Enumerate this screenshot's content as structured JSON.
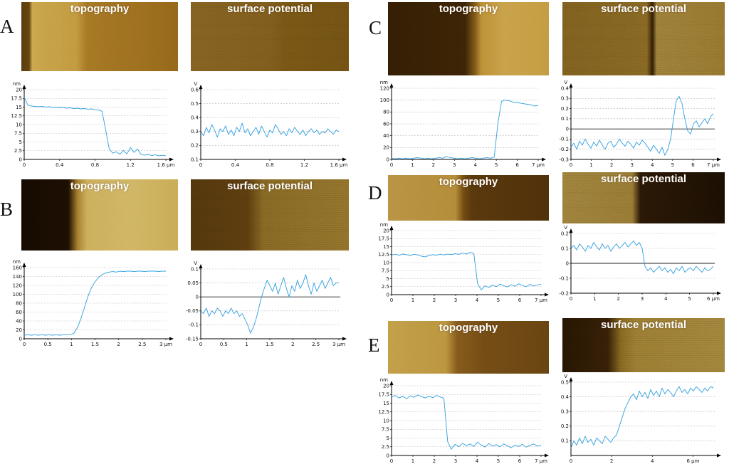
{
  "style": {
    "line_color": "#2f9fe0",
    "gold_bright": "#f2d070",
    "gold_mid": "#c8922a",
    "brown_dark": "#2a1805",
    "image_label_color": "#ffffff"
  },
  "panels": [
    {
      "letter": "A",
      "topo_label": "topography",
      "sp_label": "surface potential"
    },
    {
      "letter": "B",
      "topo_label": "topography",
      "sp_label": "surface potential"
    },
    {
      "letter": "C",
      "topo_label": "topography",
      "sp_label": "surface potential"
    },
    {
      "letter": "D",
      "topo_label": "topography",
      "sp_label": "surface potential"
    },
    {
      "letter": "E",
      "topo_label": "topography",
      "sp_label": "surface potential"
    }
  ],
  "chart_data": [
    {
      "id": "chart-a-topo",
      "type": "line",
      "panel": "A",
      "signal": "topography height profile",
      "y_unit": "nm",
      "x_unit": "µm",
      "ylim": [
        0,
        20
      ],
      "yticks": [
        0,
        2.5,
        5,
        7.5,
        10,
        12.5,
        15,
        17.5,
        20
      ],
      "xlim": [
        0,
        1.6
      ],
      "xticks": [
        0,
        0.4,
        0.8,
        1.2,
        1.6
      ],
      "zero_line": false,
      "x_start": 0,
      "x_step": 0.04,
      "values": [
        17.8,
        15.6,
        15.3,
        15.2,
        15.1,
        15.2,
        15.0,
        15.1,
        14.9,
        15.0,
        14.8,
        14.9,
        14.7,
        14.8,
        14.6,
        14.7,
        14.5,
        14.6,
        14.4,
        14.5,
        14.3,
        14.2,
        13.8,
        8.5,
        3.0,
        1.8,
        2.2,
        1.5,
        2.6,
        1.6,
        3.4,
        2.0,
        3.0,
        1.4,
        1.2,
        1.5,
        1.1,
        1.3,
        1.0,
        1.2,
        1.0
      ]
    },
    {
      "id": "chart-a-sp",
      "type": "line",
      "panel": "A",
      "signal": "surface potential profile",
      "y_unit": "V",
      "x_unit": "µm",
      "ylim": [
        0.1,
        0.6
      ],
      "yticks": [
        0.1,
        0.2,
        0.3,
        0.4,
        0.5,
        0.6
      ],
      "xlim": [
        0,
        1.6
      ],
      "xticks": [
        0,
        0.4,
        0.8,
        1.2,
        1.6
      ],
      "zero_line": false,
      "x_start": 0,
      "x_step": 0.032,
      "values": [
        0.3,
        0.27,
        0.33,
        0.29,
        0.35,
        0.31,
        0.26,
        0.32,
        0.3,
        0.34,
        0.28,
        0.31,
        0.27,
        0.33,
        0.3,
        0.36,
        0.29,
        0.32,
        0.27,
        0.3,
        0.33,
        0.28,
        0.34,
        0.3,
        0.26,
        0.31,
        0.29,
        0.35,
        0.32,
        0.28,
        0.3,
        0.27,
        0.32,
        0.29,
        0.33,
        0.3,
        0.28,
        0.31,
        0.27,
        0.3,
        0.32,
        0.29,
        0.31,
        0.28,
        0.3,
        0.29,
        0.32,
        0.3,
        0.28,
        0.31,
        0.3
      ]
    },
    {
      "id": "chart-b-topo",
      "type": "line",
      "panel": "B",
      "signal": "topography height profile",
      "y_unit": "nm",
      "x_unit": "µm",
      "ylim": [
        0,
        160
      ],
      "yticks": [
        0,
        20,
        40,
        60,
        80,
        100,
        120,
        140,
        160
      ],
      "xlim": [
        0,
        3
      ],
      "xticks": [
        0,
        0.5,
        1,
        1.5,
        2,
        2.5,
        3
      ],
      "zero_line": false,
      "x_start": 0,
      "x_step": 0.075,
      "values": [
        8,
        9,
        8,
        9,
        8,
        9,
        8,
        9,
        8,
        9,
        8,
        9,
        9,
        10,
        12,
        25,
        45,
        70,
        95,
        115,
        128,
        138,
        144,
        148,
        150,
        151,
        150,
        152,
        151,
        152,
        152,
        151,
        152,
        152,
        151,
        152,
        152,
        152,
        151,
        152,
        152
      ]
    },
    {
      "id": "chart-b-sp",
      "type": "line",
      "panel": "B",
      "signal": "surface potential profile",
      "y_unit": "V",
      "x_unit": "µm",
      "ylim": [
        -0.15,
        0.1
      ],
      "yticks": [
        -0.15,
        -0.1,
        -0.05,
        0,
        0.05,
        0.1
      ],
      "xlim": [
        0,
        3
      ],
      "xticks": [
        0,
        0.5,
        1,
        1.5,
        2,
        2.5,
        3
      ],
      "zero_line": true,
      "x_start": 0,
      "x_step": 0.06,
      "values": [
        -0.05,
        -0.06,
        -0.04,
        -0.07,
        -0.05,
        -0.06,
        -0.04,
        -0.05,
        -0.07,
        -0.05,
        -0.06,
        -0.04,
        -0.06,
        -0.05,
        -0.07,
        -0.06,
        -0.08,
        -0.1,
        -0.13,
        -0.11,
        -0.08,
        -0.04,
        0.0,
        0.03,
        0.06,
        0.04,
        0.02,
        0.05,
        0.01,
        0.04,
        0.07,
        0.03,
        0.0,
        0.04,
        0.02,
        0.06,
        0.03,
        0.05,
        0.08,
        0.04,
        0.01,
        0.05,
        0.02,
        0.04,
        0.06,
        0.03,
        0.05,
        0.07,
        0.04,
        0.05,
        0.05
      ]
    },
    {
      "id": "chart-c-topo",
      "type": "line",
      "panel": "C",
      "signal": "topography height profile",
      "y_unit": "nm",
      "x_unit": "µm",
      "ylim": [
        0,
        120
      ],
      "yticks": [
        0,
        20,
        40,
        60,
        80,
        100,
        120
      ],
      "xlim": [
        0,
        7
      ],
      "xticks": [
        0,
        1,
        2,
        3,
        4,
        5,
        6,
        7
      ],
      "zero_line": false,
      "x_start": 0,
      "x_step": 0.175,
      "values": [
        2,
        1,
        2,
        1,
        2,
        1,
        2,
        3,
        2,
        1,
        2,
        1,
        2,
        3,
        2,
        5,
        3,
        2,
        1,
        2,
        1,
        2,
        3,
        2,
        1,
        2,
        3,
        2,
        4,
        60,
        98,
        100,
        99,
        97,
        96,
        95,
        94,
        93,
        92,
        90,
        91
      ]
    },
    {
      "id": "chart-c-sp",
      "type": "line",
      "panel": "C",
      "signal": "surface potential profile",
      "y_unit": "V",
      "x_unit": "µm",
      "ylim": [
        -0.3,
        0.4
      ],
      "yticks": [
        -0.3,
        -0.2,
        -0.1,
        0,
        0.1,
        0.2,
        0.3,
        0.4
      ],
      "xlim": [
        0,
        7
      ],
      "xticks": [
        0,
        1,
        2,
        3,
        4,
        5,
        6,
        7
      ],
      "zero_line": true,
      "x_start": 0,
      "x_step": 0.14,
      "values": [
        -0.18,
        -0.14,
        -0.2,
        -0.12,
        -0.16,
        -0.1,
        -0.15,
        -0.19,
        -0.13,
        -0.17,
        -0.11,
        -0.16,
        -0.2,
        -0.14,
        -0.12,
        -0.18,
        -0.15,
        -0.1,
        -0.14,
        -0.17,
        -0.12,
        -0.15,
        -0.19,
        -0.13,
        -0.16,
        -0.11,
        -0.14,
        -0.18,
        -0.22,
        -0.16,
        -0.2,
        -0.24,
        -0.18,
        -0.26,
        -0.2,
        -0.1,
        0.1,
        0.28,
        0.32,
        0.25,
        0.1,
        -0.02,
        -0.05,
        0.05,
        0.08,
        0.02,
        0.06,
        0.1,
        0.05,
        0.12,
        0.15
      ]
    },
    {
      "id": "chart-d-topo",
      "type": "line",
      "panel": "D",
      "signal": "topography height profile",
      "y_unit": "nm",
      "x_unit": "µm",
      "ylim": [
        0,
        20
      ],
      "yticks": [
        0,
        2.5,
        5,
        7.5,
        10,
        12.5,
        15,
        17.5,
        20
      ],
      "xlim": [
        0,
        7
      ],
      "xticks": [
        0,
        1,
        2,
        3,
        4,
        5,
        6,
        7
      ],
      "zero_line": false,
      "x_start": 0,
      "x_step": 0.175,
      "values": [
        12.4,
        12.6,
        12.3,
        12.7,
        12.5,
        12.2,
        12.6,
        12.4,
        12.0,
        11.8,
        12.2,
        12.5,
        12.3,
        12.6,
        12.4,
        12.7,
        12.5,
        12.8,
        12.6,
        13.0,
        12.7,
        13.2,
        12.9,
        3.5,
        1.5,
        2.8,
        2.2,
        3.0,
        2.5,
        3.3,
        2.8,
        2.4,
        3.1,
        2.6,
        3.4,
        2.9,
        2.5,
        3.2,
        2.7,
        3.0,
        3.3
      ]
    },
    {
      "id": "chart-d-sp",
      "type": "line",
      "panel": "D",
      "signal": "surface potential profile",
      "y_unit": "V",
      "x_unit": "µm",
      "ylim": [
        -0.2,
        0.2
      ],
      "yticks": [
        -0.2,
        -0.1,
        0,
        0.1,
        0.2
      ],
      "xlim": [
        0,
        6
      ],
      "xticks": [
        0,
        1,
        2,
        3,
        4,
        5,
        6
      ],
      "zero_line": true,
      "x_start": 0,
      "x_step": 0.12,
      "values": [
        0.1,
        0.12,
        0.09,
        0.13,
        0.11,
        0.08,
        0.12,
        0.1,
        0.14,
        0.11,
        0.09,
        0.13,
        0.1,
        0.12,
        0.08,
        0.11,
        0.13,
        0.1,
        0.12,
        0.14,
        0.11,
        0.13,
        0.15,
        0.12,
        0.14,
        0.1,
        -0.02,
        -0.05,
        -0.03,
        -0.06,
        -0.04,
        -0.02,
        -0.05,
        -0.03,
        -0.06,
        -0.04,
        -0.07,
        -0.03,
        -0.05,
        -0.02,
        -0.06,
        -0.04,
        -0.03,
        -0.05,
        -0.02,
        -0.04,
        -0.06,
        -0.03,
        -0.05,
        -0.04,
        -0.02
      ]
    },
    {
      "id": "chart-e-topo",
      "type": "line",
      "panel": "E",
      "signal": "topography height profile",
      "y_unit": "nm",
      "x_unit": "µm",
      "ylim": [
        0,
        20
      ],
      "yticks": [
        0,
        2.5,
        5,
        7.5,
        10,
        12.5,
        15,
        17.5,
        20
      ],
      "xlim": [
        0,
        7
      ],
      "xticks": [
        0,
        1,
        2,
        3,
        4,
        5,
        6,
        7
      ],
      "zero_line": false,
      "x_start": 0,
      "x_step": 0.175,
      "values": [
        16.8,
        17.2,
        16.5,
        17.0,
        16.3,
        17.1,
        16.7,
        17.3,
        16.9,
        16.5,
        17.0,
        16.6,
        17.2,
        16.8,
        16.4,
        4.0,
        1.8,
        3.2,
        2.5,
        3.5,
        2.8,
        3.3,
        2.6,
        3.8,
        3.0,
        2.4,
        3.4,
        2.7,
        3.1,
        2.5,
        3.3,
        2.8,
        2.2,
        3.0,
        2.6,
        3.2,
        2.4,
        2.9,
        3.3,
        2.7,
        3.0
      ]
    },
    {
      "id": "chart-e-sp",
      "type": "line",
      "panel": "E",
      "signal": "surface potential profile",
      "y_unit": "V",
      "x_unit": "µm",
      "ylim": [
        0,
        0.5
      ],
      "yticks": [
        0.1,
        0.2,
        0.3,
        0.4,
        0.5
      ],
      "xlim": [
        0,
        7
      ],
      "xticks": [
        0,
        2,
        4,
        6
      ],
      "zero_line": false,
      "x_start": 0,
      "x_step": 0.14,
      "values": [
        0.05,
        0.1,
        0.07,
        0.12,
        0.08,
        0.13,
        0.09,
        0.11,
        0.07,
        0.12,
        0.1,
        0.08,
        0.13,
        0.11,
        0.09,
        0.12,
        0.14,
        0.2,
        0.26,
        0.32,
        0.36,
        0.4,
        0.42,
        0.38,
        0.44,
        0.4,
        0.43,
        0.39,
        0.45,
        0.41,
        0.44,
        0.4,
        0.46,
        0.42,
        0.45,
        0.43,
        0.4,
        0.44,
        0.47,
        0.43,
        0.45,
        0.42,
        0.46,
        0.44,
        0.47,
        0.45,
        0.43,
        0.46,
        0.44,
        0.47,
        0.46
      ]
    }
  ]
}
